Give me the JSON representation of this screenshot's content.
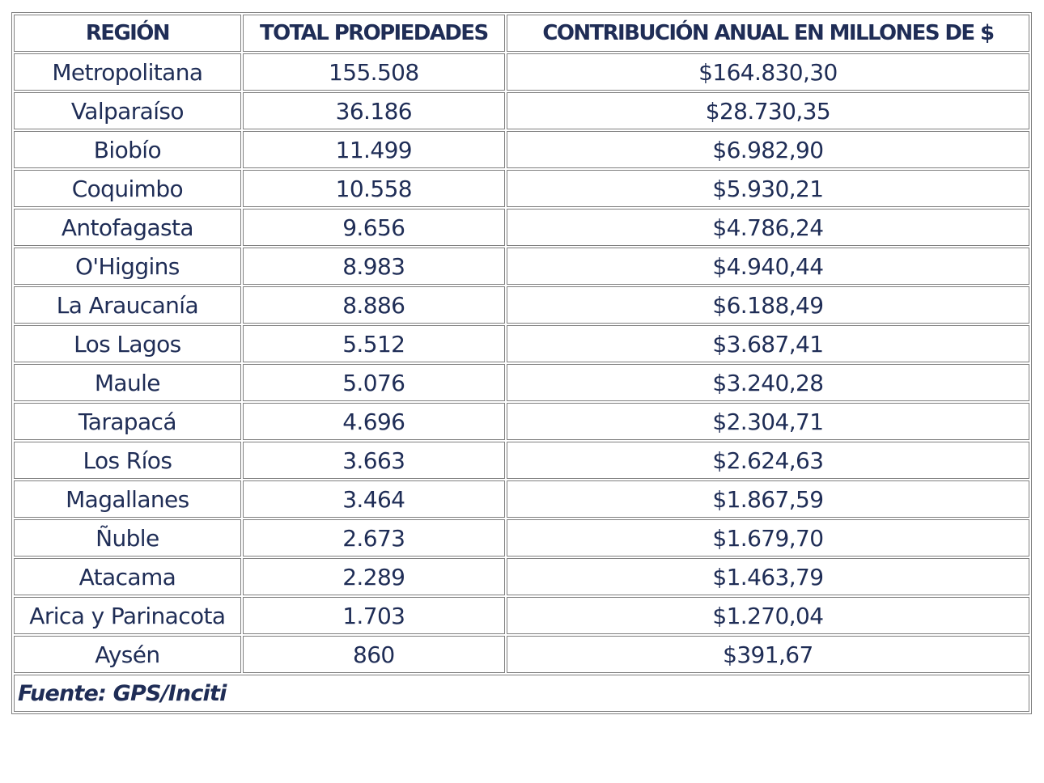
{
  "table": {
    "headers": [
      "REGIÓN",
      "TOTAL PROPIEDADES",
      "CONTRIBUCIÓN ANUAL EN MILLONES DE $"
    ],
    "rows": [
      [
        "Metropolitana",
        "155.508",
        "$164.830,30"
      ],
      [
        "Valparaíso",
        "36.186",
        "$28.730,35"
      ],
      [
        "Biobío",
        "11.499",
        "$6.982,90"
      ],
      [
        "Coquimbo",
        "10.558",
        "$5.930,21"
      ],
      [
        "Antofagasta",
        "9.656",
        "$4.786,24"
      ],
      [
        "O'Higgins",
        "8.983",
        "$4.940,44"
      ],
      [
        "La Araucanía",
        "8.886",
        "$6.188,49"
      ],
      [
        "Los Lagos",
        "5.512",
        "$3.687,41"
      ],
      [
        "Maule",
        "5.076",
        "$3.240,28"
      ],
      [
        "Tarapacá",
        "4.696",
        "$2.304,71"
      ],
      [
        "Los Ríos",
        "3.663",
        "$2.624,63"
      ],
      [
        "Magallanes",
        "3.464",
        "$1.867,59"
      ],
      [
        "Ñuble",
        "2.673",
        "$1.679,70"
      ],
      [
        "Atacama",
        "2.289",
        "$1.463,79"
      ],
      [
        "Arica y Parinacota",
        "1.703",
        "$1.270,04"
      ],
      [
        "Aysén",
        "860",
        "$391,67"
      ]
    ],
    "source": "Fuente: GPS/Inciti"
  },
  "colors": {
    "text": "#1f2d56",
    "border": "#808080",
    "background": "#ffffff"
  }
}
